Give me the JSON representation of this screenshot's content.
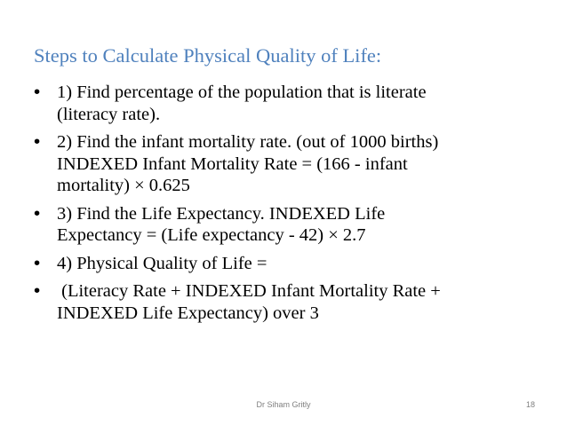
{
  "slide": {
    "title": "Steps to Calculate Physical Quality of Life:",
    "bullet_symbol": "•",
    "bullets": [
      {
        "lines": [
          "1) Find percentage of the population that is literate",
          "(literacy rate)."
        ]
      },
      {
        "lines": [
          "2) Find the infant mortality rate. (out of 1000 births)",
          "INDEXED Infant Mortality Rate = (166 - infant",
          "mortality) × 0.625"
        ]
      },
      {
        "lines": [
          "3) Find the Life Expectancy. INDEXED Life",
          "Expectancy = (Life expectancy - 42) × 2.7"
        ]
      },
      {
        "lines": [
          "4) Physical Quality of Life ="
        ]
      },
      {
        "lines": [
          " (Literacy Rate + INDEXED Infant Mortality Rate +",
          "INDEXED Life Expectancy) over 3"
        ]
      }
    ],
    "footer": {
      "author": "Dr Siham Gritly",
      "page_number": "18"
    }
  }
}
